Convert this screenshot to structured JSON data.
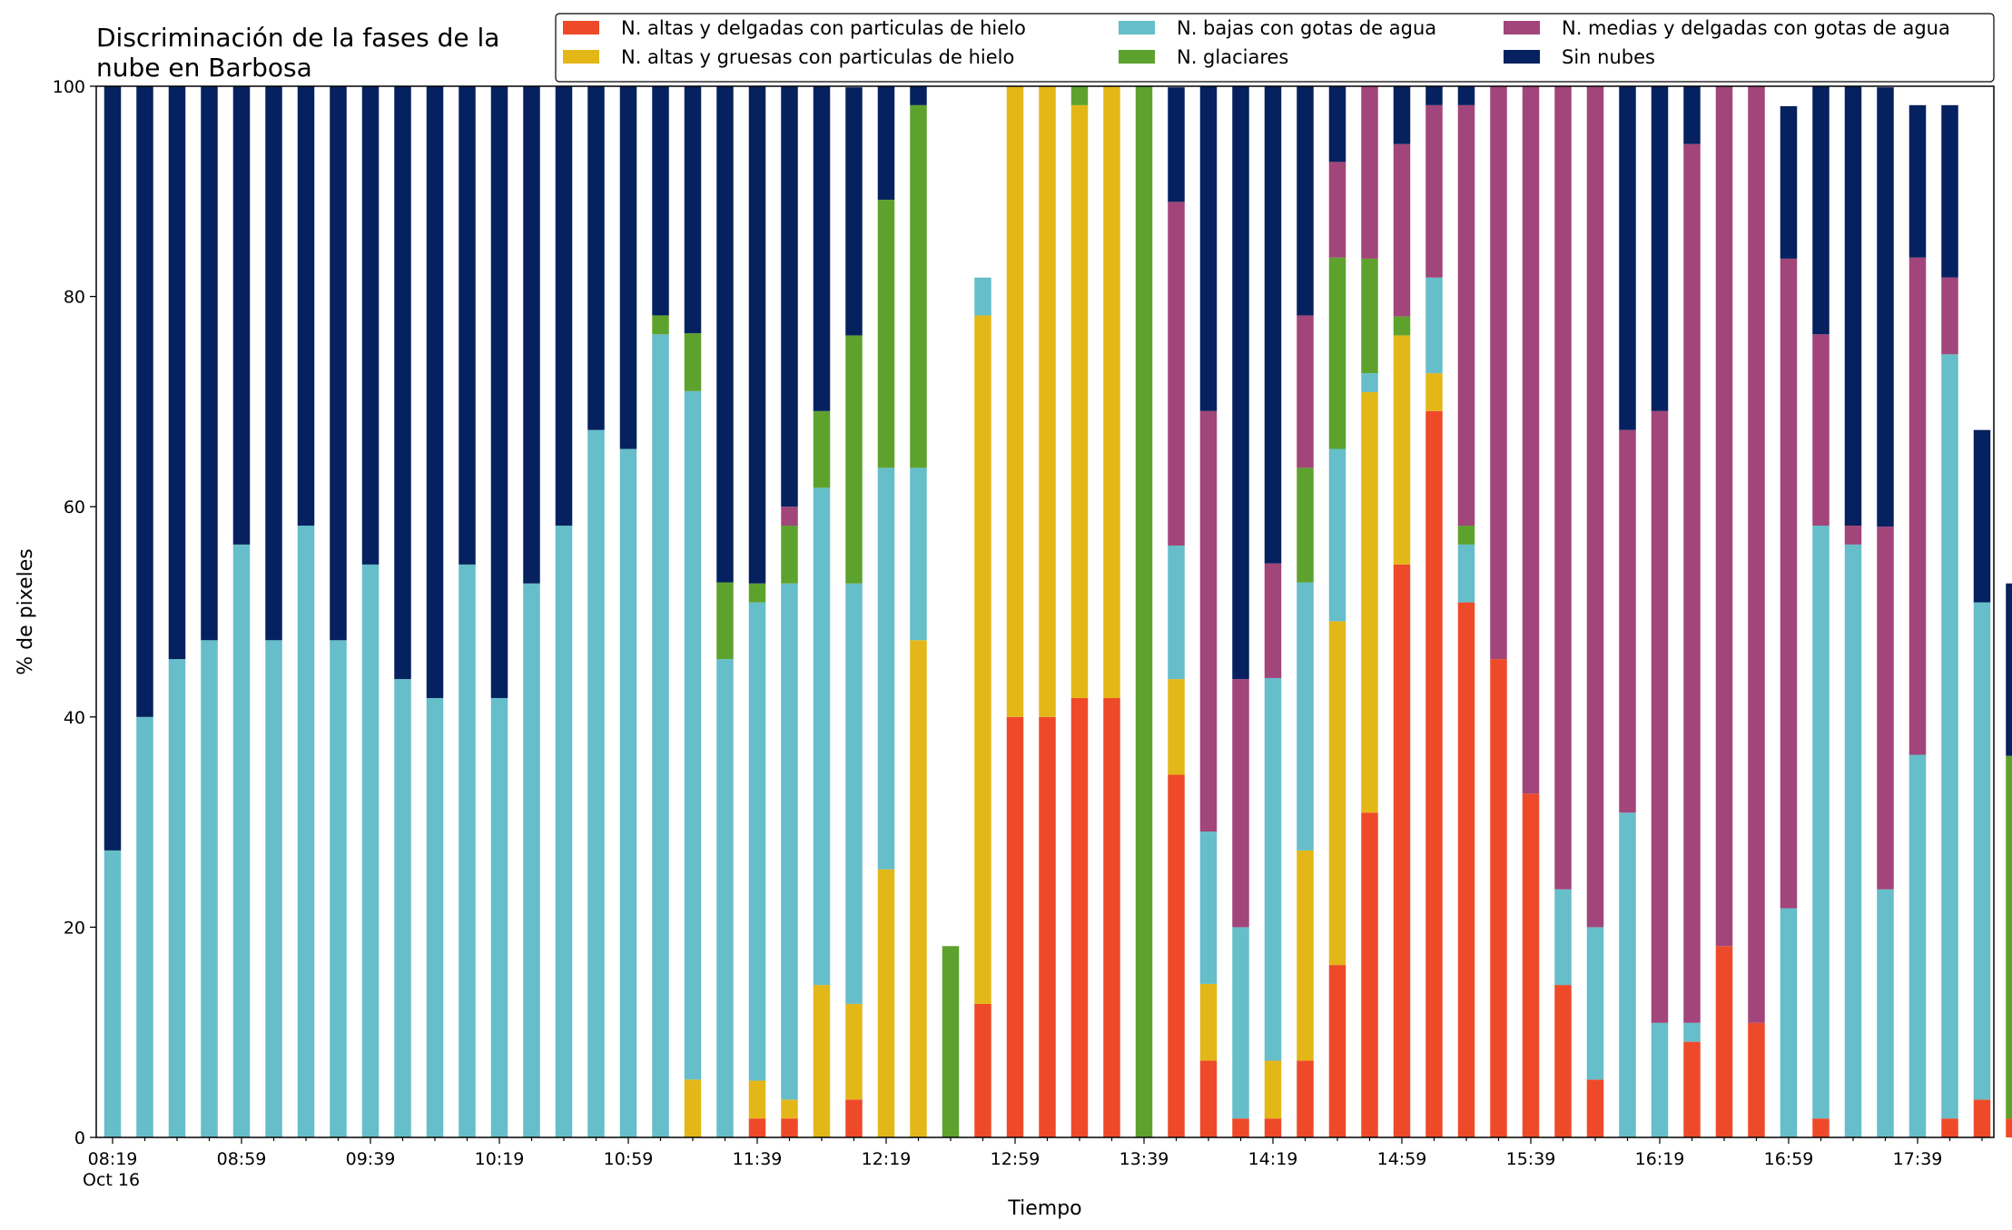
{
  "chart_data": {
    "type": "bar",
    "stacked": true,
    "title_lines": [
      "Discriminación de la fases de la",
      "nube en Barbosa"
    ],
    "xlabel": "Tiempo",
    "ylabel": "% de pixeles",
    "ylim": [
      0,
      100
    ],
    "y_ticks": [
      0,
      20,
      40,
      60,
      80,
      100
    ],
    "x_tick_labels": [
      "08:19",
      "08:59",
      "09:39",
      "10:19",
      "10:59",
      "11:39",
      "12:19",
      "12:59",
      "13:39",
      "14:19",
      "14:59",
      "15:39",
      "16:19",
      "16:59",
      "17:39"
    ],
    "x_tick_sublabel": "Oct 16",
    "grid": false,
    "legend_position": "top-right",
    "series": [
      {
        "name": "N. altas y delgadas con particulas de hielo",
        "color": "#ee4a2a",
        "values": [
          0,
          0,
          0,
          0,
          0,
          0,
          0,
          0,
          0,
          0,
          0,
          0,
          0,
          0,
          0,
          0,
          0,
          0,
          0,
          0,
          1.8,
          1.8,
          0,
          3.6,
          0,
          0,
          0,
          12.7,
          40,
          40,
          41.8,
          41.8,
          0,
          34.5,
          7.3,
          1.8,
          1.8,
          7.3,
          16.4,
          30.9,
          54.5,
          69.1,
          50.9,
          45.5,
          32.7,
          14.5,
          5.5,
          0,
          0,
          9.1,
          18.2,
          10.9,
          0,
          1.8,
          0,
          0,
          0,
          1.8,
          3.6,
          1.8
        ]
      },
      {
        "name": "N. altas y gruesas con particulas de hielo",
        "color": "#e4b719",
        "values": [
          0,
          0,
          0,
          0,
          0,
          0,
          0,
          0,
          0,
          0,
          0,
          0,
          0,
          0,
          0,
          0,
          0,
          0,
          5.5,
          0,
          3.6,
          1.8,
          14.5,
          9.1,
          25.5,
          47.3,
          0,
          65.5,
          60,
          60,
          56.4,
          58.2,
          0,
          9.1,
          7.3,
          0,
          5.5,
          20,
          32.7,
          40,
          21.8,
          3.6,
          0,
          0,
          0,
          0,
          0,
          0,
          0,
          0,
          0,
          0,
          0,
          0,
          0,
          0,
          0,
          0,
          0,
          0
        ]
      },
      {
        "name": "N. bajas con gotas de agua",
        "color": "#65bec9",
        "values": [
          27.3,
          40,
          45.5,
          47.3,
          56.4,
          47.3,
          58.2,
          47.3,
          54.5,
          43.6,
          41.8,
          54.5,
          41.8,
          52.7,
          58.2,
          67.3,
          65.5,
          76.4,
          65.5,
          45.5,
          45.5,
          49.1,
          47.3,
          40,
          38.2,
          16.4,
          0,
          3.6,
          0,
          0,
          0,
          0,
          0,
          12.7,
          14.5,
          18.2,
          36.4,
          25.5,
          16.4,
          1.8,
          0,
          9.1,
          5.5,
          0,
          0,
          9.1,
          14.5,
          30.9,
          10.9,
          1.8,
          0,
          0,
          21.8,
          56.4,
          56.4,
          23.6,
          36.4,
          72.7,
          47.3,
          0
        ]
      },
      {
        "name": "N. glaciares",
        "color": "#5ea22e",
        "values": [
          0,
          0,
          0,
          0,
          0,
          0,
          0,
          0,
          0,
          0,
          0,
          0,
          0,
          0,
          0,
          0,
          0,
          1.8,
          5.5,
          7.3,
          1.8,
          5.5,
          7.3,
          23.6,
          25.5,
          34.5,
          18.2,
          0,
          0,
          0,
          1.8,
          0,
          100,
          0,
          0,
          0,
          0,
          10.9,
          18.2,
          10.9,
          1.8,
          0,
          1.8,
          0,
          0,
          0,
          0,
          0,
          0,
          0,
          0,
          0,
          0,
          0,
          0,
          0,
          0,
          0,
          0,
          34.5
        ]
      },
      {
        "name": "N. medias y delgadas con gotas de agua",
        "color": "#a2457a",
        "values": [
          0,
          0,
          0,
          0,
          0,
          0,
          0,
          0,
          0,
          0,
          0,
          0,
          0,
          0,
          0,
          0,
          0,
          0,
          0,
          0,
          0,
          1.8,
          0,
          0,
          0,
          0,
          0,
          0,
          0,
          0,
          0,
          0,
          0,
          32.7,
          40,
          23.6,
          10.9,
          14.5,
          9.1,
          16.4,
          16.4,
          16.4,
          40,
          54.5,
          67.3,
          76.4,
          80,
          36.4,
          58.2,
          83.6,
          81.8,
          89.1,
          61.8,
          18.2,
          1.8,
          34.5,
          47.3,
          7.3,
          0,
          0
        ]
      },
      {
        "name": "Sin nubes",
        "color": "#06215f",
        "values": [
          72.7,
          60,
          54.5,
          52.7,
          43.6,
          52.7,
          41.8,
          52.7,
          45.5,
          56.4,
          58.2,
          45.5,
          58.2,
          47.3,
          41.8,
          32.7,
          34.5,
          21.8,
          23.6,
          47.3,
          47.3,
          40,
          30.9,
          23.6,
          10.9,
          1.8,
          0,
          0,
          0,
          0,
          0,
          0,
          0,
          10.9,
          30.9,
          56.4,
          45.5,
          21.8,
          7.3,
          0,
          5.5,
          1.8,
          1.8,
          0,
          0,
          0,
          0,
          32.7,
          30.9,
          5.5,
          0,
          0,
          14.5,
          23.6,
          41.8,
          41.8,
          14.5,
          16.4,
          16.4,
          16.4
        ]
      }
    ]
  }
}
